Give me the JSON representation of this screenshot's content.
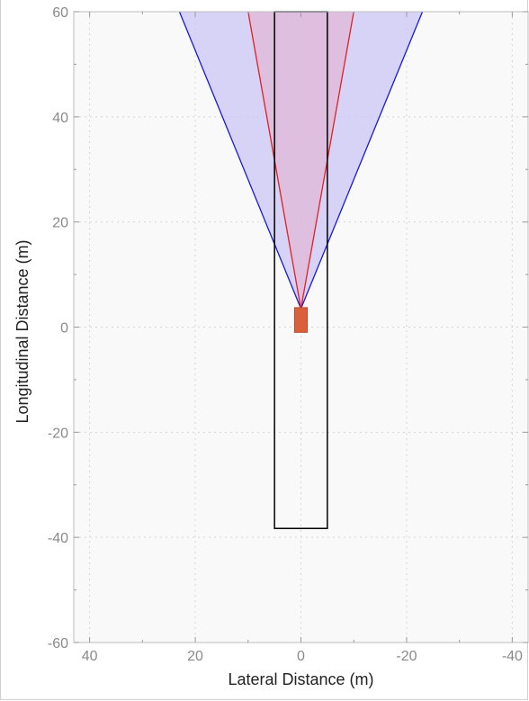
{
  "chart_data": {
    "type": "area",
    "xlabel": "Lateral Distance (m)",
    "ylabel": "Longitudinal Distance (m)",
    "xlim": [
      43,
      -43
    ],
    "ylim": [
      -60,
      60
    ],
    "x_reversed": true,
    "x_ticks": [
      40,
      20,
      0,
      -20,
      -40
    ],
    "x_tick_labels": [
      "40",
      "20",
      "0",
      "-20",
      "-40"
    ],
    "y_ticks": [
      60,
      40,
      20,
      0,
      -20,
      -40,
      -60
    ],
    "y_tick_labels": [
      "60",
      "40",
      "20",
      "0",
      "-20",
      "-40",
      "-60"
    ],
    "grid": true,
    "series": [
      {
        "kind": "coverage-wide",
        "polygon": [
          [
            0,
            3.5
          ],
          [
            23,
            60
          ],
          [
            -23,
            60
          ]
        ],
        "fill": "#c9c6f5",
        "edge": "#1a1ad0"
      },
      {
        "kind": "coverage-narrow",
        "polygon": [
          [
            0,
            3.5
          ],
          [
            10,
            60
          ],
          [
            -10,
            60
          ]
        ],
        "fill": "#e0b8d8",
        "edge": "#e02020"
      },
      {
        "kind": "lane-rectangle",
        "x_range": [
          -5,
          5
        ],
        "y_range": [
          -38.3,
          60
        ],
        "edge": "#000000"
      },
      {
        "kind": "ego-vehicle",
        "x_range": [
          -1.2,
          1.2
        ],
        "y_range": [
          -1,
          3.7
        ],
        "fill": "#d9603a"
      }
    ]
  },
  "colors": {
    "plot_background": "#f9f9f9",
    "grid": "#d6d6d6",
    "tick_label": "#8a8a8a"
  }
}
